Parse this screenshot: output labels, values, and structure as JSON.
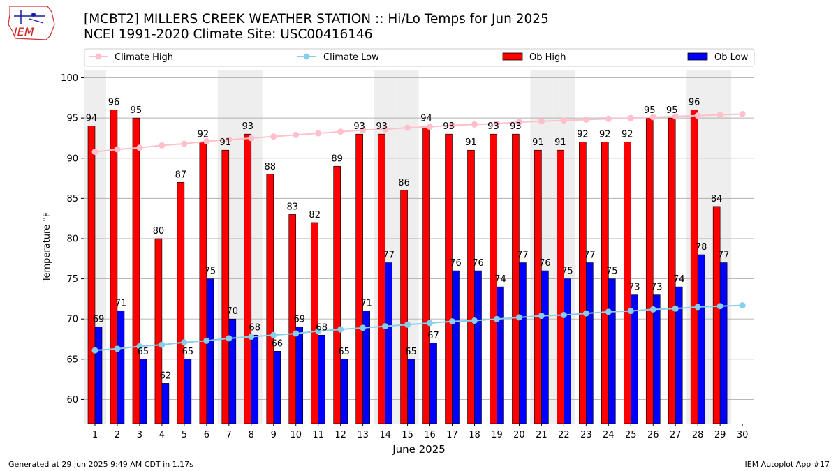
{
  "header": {
    "logo_text": "IEM",
    "title_line1": "[MCBT2] MILLERS CREEK WEATHER STATION :: Hi/Lo Temps for Jun 2025",
    "title_line2": "NCEI 1991-2020 Climate Site: USC00416146"
  },
  "footer": {
    "generated": "Generated at 29 Jun 2025 9:49 AM CDT in 1.17s",
    "app": "IEM Autoplot App #17"
  },
  "colors": {
    "climate_high": "#ffc0cb",
    "climate_low": "#87ceeb",
    "ob_high": "#ff0000",
    "ob_low": "#0000ff",
    "weekend_band": "#eeeeee",
    "grid": "#b0b0b0"
  },
  "chart_data": {
    "type": "bar",
    "xlabel": "June 2025",
    "ylabel": "Temperature °F",
    "ylim": [
      57,
      101
    ],
    "yticks": [
      60,
      65,
      70,
      75,
      80,
      85,
      90,
      95,
      100
    ],
    "grid": true,
    "legend_position": "top",
    "categories": [
      1,
      2,
      3,
      4,
      5,
      6,
      7,
      8,
      9,
      10,
      11,
      12,
      13,
      14,
      15,
      16,
      17,
      18,
      19,
      20,
      21,
      22,
      23,
      24,
      25,
      26,
      27,
      28,
      29,
      30
    ],
    "weekend_days": [
      1,
      7,
      8,
      14,
      15,
      21,
      22,
      28,
      29
    ],
    "series": [
      {
        "name": "Climate High",
        "kind": "line",
        "values": [
          90.8,
          91.1,
          91.3,
          91.6,
          91.8,
          92.1,
          92.3,
          92.5,
          92.7,
          92.9,
          93.1,
          93.3,
          93.5,
          93.6,
          93.8,
          93.9,
          94.1,
          94.2,
          94.3,
          94.5,
          94.6,
          94.7,
          94.8,
          94.9,
          95.0,
          95.1,
          95.2,
          95.3,
          95.4,
          95.5
        ]
      },
      {
        "name": "Climate Low",
        "kind": "line",
        "values": [
          66.1,
          66.3,
          66.6,
          66.8,
          67.1,
          67.3,
          67.6,
          67.8,
          68.0,
          68.2,
          68.5,
          68.7,
          68.9,
          69.1,
          69.3,
          69.5,
          69.7,
          69.8,
          70.0,
          70.2,
          70.4,
          70.5,
          70.7,
          70.9,
          71.0,
          71.2,
          71.3,
          71.5,
          71.6,
          71.7
        ]
      },
      {
        "name": "Ob High",
        "kind": "bar",
        "values": [
          94,
          96,
          95,
          80,
          87,
          92,
          91,
          93,
          88,
          83,
          82,
          89,
          93,
          93,
          86,
          94,
          93,
          91,
          93,
          93,
          91,
          91,
          92,
          92,
          92,
          95,
          95,
          96,
          84,
          null
        ]
      },
      {
        "name": "Ob Low",
        "kind": "bar",
        "values": [
          69,
          71,
          65,
          62,
          65,
          75,
          70,
          68,
          66,
          69,
          68,
          65,
          71,
          77,
          65,
          67,
          76,
          76,
          74,
          77,
          76,
          75,
          77,
          75,
          73,
          73,
          74,
          78,
          77,
          null
        ]
      }
    ]
  }
}
